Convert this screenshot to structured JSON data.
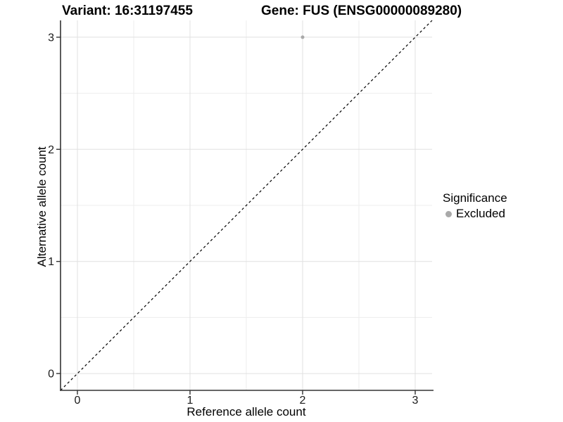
{
  "header": {
    "variant_title": "Variant: 16:31197455",
    "gene_title": "Gene: FUS (ENSG00000089280)"
  },
  "chart_data": {
    "type": "scatter",
    "title": "Variant: 16:31197455 — Gene: FUS (ENSG00000089280)",
    "xlabel": "Reference allele count",
    "ylabel": "Alternative allele count",
    "xlim": [
      -0.15,
      3.15
    ],
    "ylim": [
      -0.15,
      3.15
    ],
    "xticks": [
      0,
      1,
      2,
      3
    ],
    "yticks": [
      0,
      1,
      2,
      3
    ],
    "minor_ticks": [
      0.5,
      1.5,
      2.5
    ],
    "grid": "major and minor gridlines, white panel background",
    "legend_position": "right",
    "series": [
      {
        "name": "Excluded",
        "marker": "circle",
        "color": "#a9a9a9",
        "points": [
          {
            "x": 2,
            "y": 3
          }
        ]
      }
    ],
    "reference_line": {
      "equation": "y = x",
      "style": "dashed",
      "color": "#000000",
      "from": [
        -0.15,
        -0.15
      ],
      "to": [
        3.15,
        3.15
      ]
    }
  },
  "legend": {
    "title": "Significance",
    "items": [
      {
        "label": "Excluded",
        "color": "#a9a9a9"
      }
    ]
  },
  "colors": {
    "background": "#ffffff",
    "grid_major": "#e0e0e0",
    "grid_minor": "#ededed",
    "axis_line": "#333333",
    "tick_label": "#1a1a1a",
    "title_text": "#000000"
  }
}
